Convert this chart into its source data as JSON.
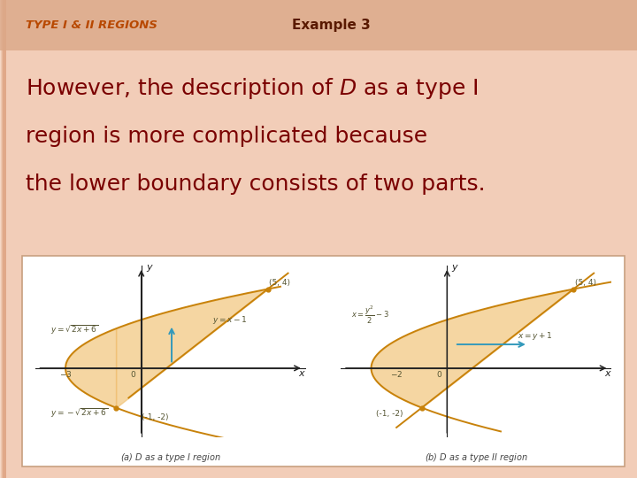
{
  "bg_color": "#f2cdb8",
  "header_bar_color": "#dba888",
  "header_left_text": "TYPE I & II REGIONS",
  "header_left_color": "#b84800",
  "header_right_text": "Example 3",
  "header_right_color": "#5a1a00",
  "body_text_color": "#7a0000",
  "body_text_fontsize": 18,
  "panel_bg": "#ffffff",
  "panel_border_color": "#c8a080",
  "curve_color": "#c8820a",
  "fill_color": "#f0c070",
  "fill_alpha": 0.65,
  "arrow_color": "#3399bb",
  "label_color": "#555533",
  "axis_color": "#222222",
  "caption_color": "#444444"
}
